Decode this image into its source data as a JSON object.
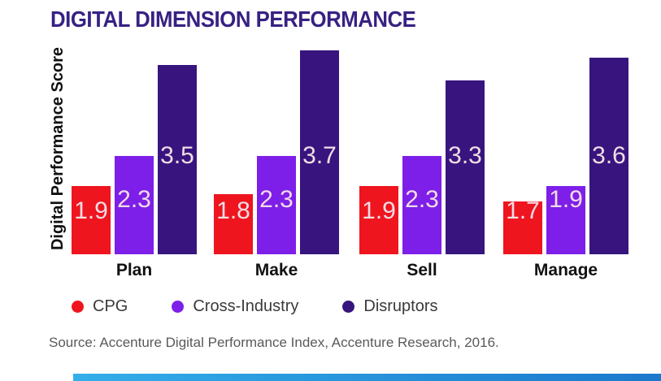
{
  "chart_data": {
    "type": "bar",
    "title": "DIGITAL DIMENSION PERFORMANCE",
    "ylabel": "Digital Performance Score",
    "categories": [
      "Plan",
      "Make",
      "Sell",
      "Manage"
    ],
    "series": [
      {
        "name": "CPG",
        "color": "#ee151f",
        "values": [
          1.9,
          1.8,
          1.9,
          1.7
        ]
      },
      {
        "name": "Cross-Industry",
        "color": "#7d1fe8",
        "values": [
          2.3,
          2.3,
          2.3,
          1.9
        ]
      },
      {
        "name": "Disruptors",
        "color": "#38157e",
        "values": [
          3.5,
          3.7,
          3.3,
          3.6
        ]
      }
    ],
    "value_labels_shown": true,
    "value_label_color": "#f2dce4",
    "axis_min_effective": 1.0,
    "ylim": [
      1.0,
      4.0
    ],
    "grid": false,
    "legend_position": "bottom"
  },
  "colors": {
    "title": "#372183",
    "category_text": "#111111",
    "legend_text": "#3a3a3a",
    "source_text": "#5a5a5a"
  },
  "source": {
    "text": "Source: Accenture Digital Performance Index, Accenture Research, 2016."
  },
  "footer": {
    "gradient_left": "#33aeea",
    "gradient_right": "#1b78cc"
  }
}
